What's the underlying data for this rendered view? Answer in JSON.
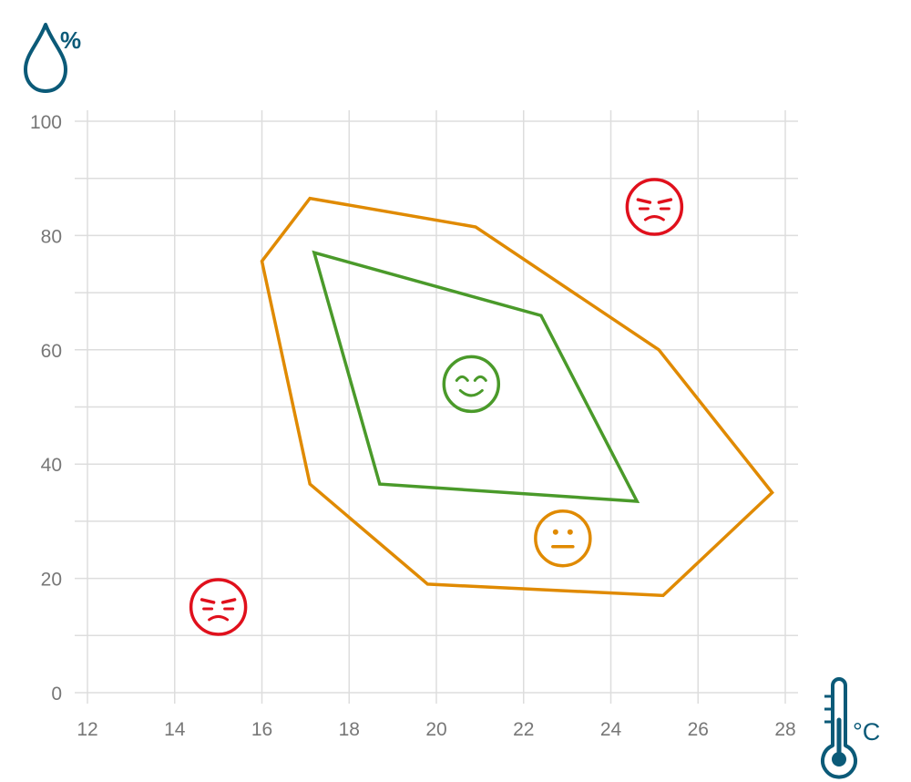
{
  "chart_data": {
    "type": "line",
    "x_unit": "°C",
    "y_unit": "%",
    "x_icon": "thermometer-icon",
    "y_icon": "water-drop-icon",
    "xlim": [
      12,
      28
    ],
    "ylim": [
      0,
      100
    ],
    "x_ticks": [
      "12",
      "14",
      "16",
      "18",
      "20",
      "22",
      "24",
      "26",
      "28"
    ],
    "y_ticks": [
      "0",
      "20",
      "40",
      "60",
      "80",
      "100"
    ],
    "grid": true,
    "regions": [
      {
        "color": "#e08a00",
        "points": [
          [
            16.0,
            75.5
          ],
          [
            17.1,
            86.5
          ],
          [
            20.9,
            81.5
          ],
          [
            25.1,
            60.0
          ],
          [
            27.7,
            35.0
          ],
          [
            25.2,
            17.0
          ],
          [
            19.8,
            19.0
          ],
          [
            17.1,
            36.5
          ]
        ]
      },
      {
        "color": "#4a9a2a",
        "points": [
          [
            17.2,
            77.0
          ],
          [
            22.4,
            66.0
          ],
          [
            24.6,
            33.5
          ],
          [
            18.7,
            36.5
          ]
        ]
      }
    ],
    "markers": [
      {
        "face": "happy",
        "x": 20.8,
        "y": 54,
        "color": "#4a9a2a"
      },
      {
        "face": "neutral",
        "x": 22.9,
        "y": 27,
        "color": "#e08a00"
      },
      {
        "face": "sad",
        "x": 25.0,
        "y": 85,
        "color": "#e0101c"
      },
      {
        "face": "sad",
        "x": 15.0,
        "y": 15,
        "color": "#e0101c"
      }
    ],
    "colors": {
      "grid": "#dddddd",
      "tick_text": "#777777",
      "icon": "#0b5a78"
    }
  }
}
